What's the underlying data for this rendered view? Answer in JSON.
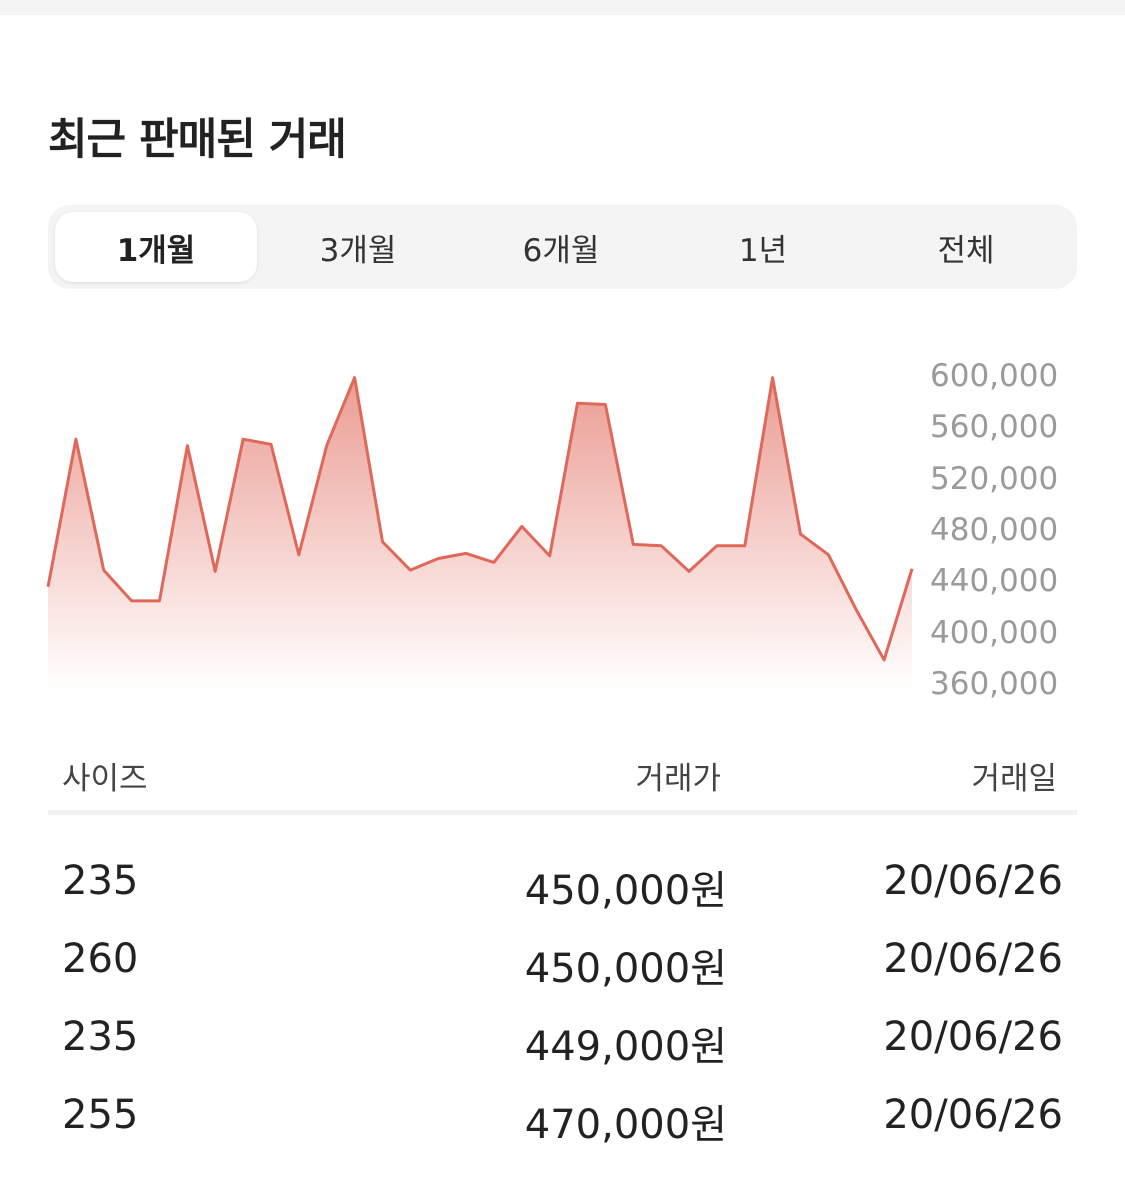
{
  "section_title": "최근 판매된 거래",
  "tabs": [
    {
      "label": "1개월",
      "active": true
    },
    {
      "label": "3개월",
      "active": false
    },
    {
      "label": "6개월",
      "active": false
    },
    {
      "label": "1년",
      "active": false
    },
    {
      "label": "전체",
      "active": false
    }
  ],
  "chart_data": {
    "type": "area",
    "y_ticks": [
      "600,000",
      "560,000",
      "520,000",
      "480,000",
      "440,000",
      "400,000",
      "360,000"
    ],
    "ylim": [
      360000,
      600000
    ],
    "line_color": "#e0685a",
    "values": [
      435000,
      550000,
      448000,
      424000,
      424000,
      545000,
      447000,
      550000,
      546000,
      460000,
      545000,
      598000,
      470000,
      448000,
      457000,
      461000,
      454000,
      482000,
      459000,
      578000,
      577000,
      468000,
      467000,
      447000,
      467000,
      467000,
      598000,
      476000,
      460000,
      417000,
      378000,
      449000
    ]
  },
  "table": {
    "headers": {
      "size": "사이즈",
      "price": "거래가",
      "date": "거래일"
    },
    "rows": [
      {
        "size": "235",
        "price": "450,000원",
        "date": "20/06/26"
      },
      {
        "size": "260",
        "price": "450,000원",
        "date": "20/06/26"
      },
      {
        "size": "235",
        "price": "449,000원",
        "date": "20/06/26"
      },
      {
        "size": "255",
        "price": "470,000원",
        "date": "20/06/26"
      }
    ]
  }
}
